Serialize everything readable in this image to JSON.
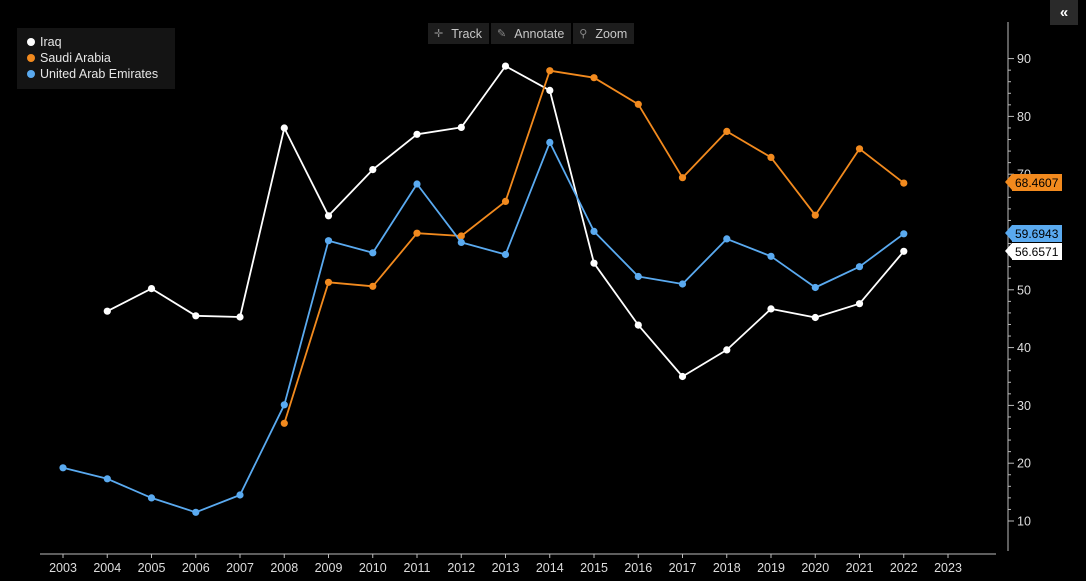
{
  "toolbar": {
    "track_label": "Track",
    "annotate_label": "Annotate",
    "zoom_label": "Zoom"
  },
  "collapse_label": "«",
  "colors": {
    "background": "#000000",
    "iraq": "#ffffff",
    "saudi_arabia": "#f28a1e",
    "uae": "#5aaaf0",
    "axis": "#cccccc"
  },
  "chart_data": {
    "type": "line",
    "x": [
      2003,
      2004,
      2005,
      2006,
      2007,
      2008,
      2009,
      2010,
      2011,
      2012,
      2013,
      2014,
      2015,
      2016,
      2017,
      2018,
      2019,
      2020,
      2021,
      2022
    ],
    "x_ticks": [
      "2003",
      "2004",
      "2005",
      "2006",
      "2007",
      "2008",
      "2009",
      "2010",
      "2011",
      "2012",
      "2013",
      "2014",
      "2015",
      "2016",
      "2017",
      "2018",
      "2019",
      "2020",
      "2021",
      "2022",
      "2023"
    ],
    "y_ticks": [
      "10",
      "20",
      "30",
      "40",
      "50",
      "60",
      "70",
      "80",
      "90"
    ],
    "ylim": [
      5,
      96
    ],
    "xlim": [
      2003,
      2023
    ],
    "legend_position": "top-left",
    "grid": false,
    "series": [
      {
        "name": "Iraq",
        "color": "#ffffff",
        "values": [
          null,
          46.3,
          50.2,
          45.5,
          45.3,
          78.0,
          62.8,
          70.8,
          76.9,
          78.1,
          88.7,
          84.5,
          54.6,
          43.9,
          35.0,
          39.6,
          46.7,
          45.2,
          47.6,
          56.6571
        ],
        "last_label": "56.6571"
      },
      {
        "name": "Saudi Arabia",
        "color": "#f28a1e",
        "values": [
          null,
          null,
          null,
          null,
          null,
          26.9,
          51.3,
          50.6,
          59.8,
          59.3,
          65.3,
          87.9,
          86.7,
          82.1,
          69.4,
          77.4,
          72.9,
          62.9,
          74.4,
          68.4607
        ],
        "last_label": "68.4607"
      },
      {
        "name": "United Arab Emirates",
        "color": "#5aaaf0",
        "values": [
          19.2,
          17.3,
          14.0,
          11.5,
          14.5,
          30.1,
          58.5,
          56.4,
          68.3,
          58.2,
          56.1,
          75.5,
          60.1,
          52.3,
          51.0,
          58.8,
          55.8,
          50.4,
          54.0,
          59.6943
        ],
        "last_label": "59.6943"
      }
    ]
  }
}
